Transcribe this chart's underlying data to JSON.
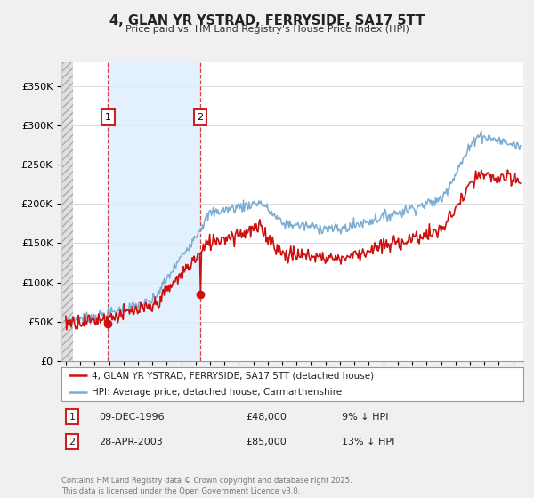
{
  "title": "4, GLAN YR YSTRAD, FERRYSIDE, SA17 5TT",
  "subtitle": "Price paid vs. HM Land Registry's House Price Index (HPI)",
  "legend_line1": "4, GLAN YR YSTRAD, FERRYSIDE, SA17 5TT (detached house)",
  "legend_line2": "HPI: Average price, detached house, Carmarthenshire",
  "sale1_label": "1",
  "sale1_date": "09-DEC-1996",
  "sale1_price": "£48,000",
  "sale1_hpi": "9% ↓ HPI",
  "sale1_year": 1996.93,
  "sale1_value": 48000,
  "sale2_label": "2",
  "sale2_date": "28-APR-2003",
  "sale2_price": "£85,000",
  "sale2_hpi": "13% ↓ HPI",
  "sale2_year": 2003.32,
  "sale2_value": 85000,
  "hpi_color": "#7aadd4",
  "price_color": "#cc1111",
  "sale_marker_color": "#cc1111",
  "annotation_box_color": "#cc2222",
  "ylim_min": 0,
  "ylim_max": 380000,
  "yticks": [
    0,
    50000,
    100000,
    150000,
    200000,
    250000,
    300000,
    350000
  ],
  "ytick_labels": [
    "£0",
    "£50K",
    "£100K",
    "£150K",
    "£200K",
    "£250K",
    "£300K",
    "£350K"
  ],
  "footer": "Contains HM Land Registry data © Crown copyright and database right 2025.\nThis data is licensed under the Open Government Licence v3.0.",
  "background_color": "#f0f0f0",
  "plot_bg_color": "#ffffff",
  "grid_color": "#cccccc",
  "hatch_region_end": 1994.5,
  "shade_region_start": 1996.93,
  "shade_region_end": 2003.32,
  "shade_color": "#ddeeff",
  "xmin": 1994,
  "xmax": 2025.7
}
